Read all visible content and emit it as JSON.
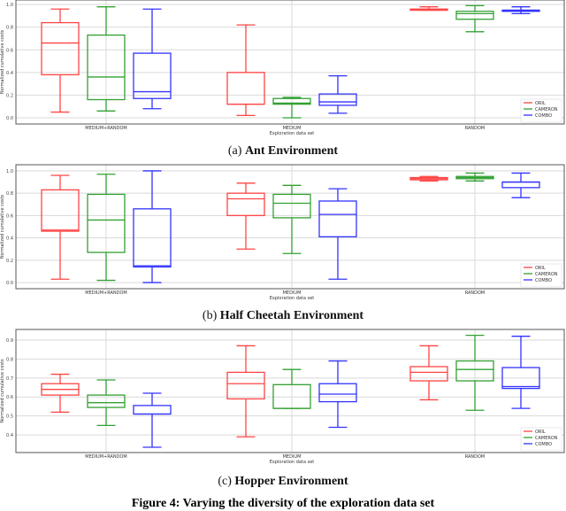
{
  "figure_caption": "Figure 4: Varying the diversity of the exploration data set",
  "colors": {
    "ORIL": "#ff4444",
    "CAMERON": "#33a033",
    "COMBO": "#3333ff",
    "grid": "#d9d9d9",
    "axis": "#555555"
  },
  "chart_data": [
    {
      "type": "box",
      "caption_prefix": "(a)",
      "caption_title": "Ant Environment",
      "xlabel": "Exploration data set",
      "ylabel": "Normalized cumulative costs",
      "categories": [
        "MEDIUM+RANDOM",
        "MEDIUM",
        "RANDOM"
      ],
      "yticks": [
        0.0,
        0.2,
        0.4,
        0.6,
        0.8,
        1.0
      ],
      "ytick_labels": [
        "0.0",
        "0.2",
        "0.4",
        "0.6",
        "0.8",
        "1.0"
      ],
      "ylim": [
        -0.055,
        1.04
      ],
      "grid": true,
      "legend": "bottom-right",
      "series": [
        {
          "name": "ORIL",
          "boxes": [
            {
              "lo": 0.05,
              "q1": 0.38,
              "median": 0.66,
              "q3": 0.84,
              "hi": 0.96
            },
            {
              "lo": 0.02,
              "q1": 0.12,
              "median": 0.12,
              "q3": 0.4,
              "hi": 0.82
            },
            {
              "lo": 0.95,
              "q1": 0.95,
              "median": 0.95,
              "q3": 0.96,
              "hi": 0.98
            }
          ]
        },
        {
          "name": "CAMERON",
          "boxes": [
            {
              "lo": 0.06,
              "q1": 0.16,
              "median": 0.36,
              "q3": 0.73,
              "hi": 0.98
            },
            {
              "lo": 0.0,
              "q1": 0.12,
              "median": 0.13,
              "q3": 0.17,
              "hi": 0.18
            },
            {
              "lo": 0.76,
              "q1": 0.87,
              "median": 0.92,
              "q3": 0.94,
              "hi": 0.99
            }
          ]
        },
        {
          "name": "COMBO",
          "boxes": [
            {
              "lo": 0.08,
              "q1": 0.17,
              "median": 0.23,
              "q3": 0.57,
              "hi": 0.96
            },
            {
              "lo": 0.04,
              "q1": 0.11,
              "median": 0.14,
              "q3": 0.21,
              "hi": 0.37
            },
            {
              "lo": 0.92,
              "q1": 0.94,
              "median": 0.95,
              "q3": 0.95,
              "hi": 0.98
            }
          ]
        }
      ]
    },
    {
      "type": "box",
      "caption_prefix": "(b)",
      "caption_title": "Half Cheetah Environment",
      "xlabel": "Exploration data set",
      "ylabel": "Normalized cumulative costs",
      "categories": [
        "MEDIUM+RANDOM",
        "MEDIUM",
        "RANDOM"
      ],
      "yticks": [
        0.0,
        0.2,
        0.4,
        0.6,
        0.8,
        1.0
      ],
      "ytick_labels": [
        "0.0",
        "0.2",
        "0.4",
        "0.6",
        "0.8",
        "1.0"
      ],
      "ylim": [
        -0.055,
        1.055
      ],
      "grid": true,
      "legend": "bottom-right",
      "series": [
        {
          "name": "ORIL",
          "boxes": [
            {
              "lo": 0.03,
              "q1": 0.46,
              "median": 0.47,
              "q3": 0.83,
              "hi": 0.96
            },
            {
              "lo": 0.3,
              "q1": 0.6,
              "median": 0.75,
              "q3": 0.8,
              "hi": 0.89
            },
            {
              "lo": 0.91,
              "q1": 0.92,
              "median": 0.93,
              "q3": 0.94,
              "hi": 0.95
            }
          ]
        },
        {
          "name": "CAMERON",
          "boxes": [
            {
              "lo": 0.02,
              "q1": 0.27,
              "median": 0.56,
              "q3": 0.79,
              "hi": 0.97
            },
            {
              "lo": 0.26,
              "q1": 0.58,
              "median": 0.71,
              "q3": 0.79,
              "hi": 0.87
            },
            {
              "lo": 0.91,
              "q1": 0.93,
              "median": 0.94,
              "q3": 0.95,
              "hi": 0.98
            }
          ]
        },
        {
          "name": "COMBO",
          "boxes": [
            {
              "lo": 0.0,
              "q1": 0.14,
              "median": 0.15,
              "q3": 0.66,
              "hi": 1.0
            },
            {
              "lo": 0.03,
              "q1": 0.41,
              "median": 0.61,
              "q3": 0.73,
              "hi": 0.84
            },
            {
              "lo": 0.76,
              "q1": 0.85,
              "median": 0.9,
              "q3": 0.9,
              "hi": 0.98
            }
          ]
        }
      ]
    },
    {
      "type": "box",
      "caption_prefix": "(c)",
      "caption_title": "Hopper Environment",
      "xlabel": "Exploration data set",
      "ylabel": "Normalized cumulative costs",
      "categories": [
        "MEDIUM+RANDOM",
        "MEDIUM",
        "RANDOM"
      ],
      "yticks": [
        0.4,
        0.5,
        0.6,
        0.7,
        0.8,
        0.9
      ],
      "ytick_labels": [
        "0.4",
        "0.5",
        "0.6",
        "0.7",
        "0.8",
        "0.9"
      ],
      "ylim": [
        0.307,
        0.956
      ],
      "grid": true,
      "legend": "bottom-right",
      "series": [
        {
          "name": "ORIL",
          "boxes": [
            {
              "lo": 0.52,
              "q1": 0.61,
              "median": 0.64,
              "q3": 0.67,
              "hi": 0.72
            },
            {
              "lo": 0.39,
              "q1": 0.59,
              "median": 0.67,
              "q3": 0.73,
              "hi": 0.87
            },
            {
              "lo": 0.585,
              "q1": 0.685,
              "median": 0.73,
              "q3": 0.76,
              "hi": 0.87
            }
          ]
        },
        {
          "name": "CAMERON",
          "boxes": [
            {
              "lo": 0.45,
              "q1": 0.545,
              "median": 0.57,
              "q3": 0.61,
              "hi": 0.69
            },
            {
              "lo": 0.54,
              "q1": 0.54,
              "median": 0.54,
              "q3": 0.665,
              "hi": 0.745
            },
            {
              "lo": 0.53,
              "q1": 0.685,
              "median": 0.745,
              "q3": 0.79,
              "hi": 0.925
            }
          ]
        },
        {
          "name": "COMBO",
          "boxes": [
            {
              "lo": 0.335,
              "q1": 0.51,
              "median": 0.51,
              "q3": 0.555,
              "hi": 0.62
            },
            {
              "lo": 0.44,
              "q1": 0.575,
              "median": 0.615,
              "q3": 0.67,
              "hi": 0.79
            },
            {
              "lo": 0.54,
              "q1": 0.645,
              "median": 0.655,
              "q3": 0.755,
              "hi": 0.92
            }
          ]
        }
      ]
    }
  ]
}
